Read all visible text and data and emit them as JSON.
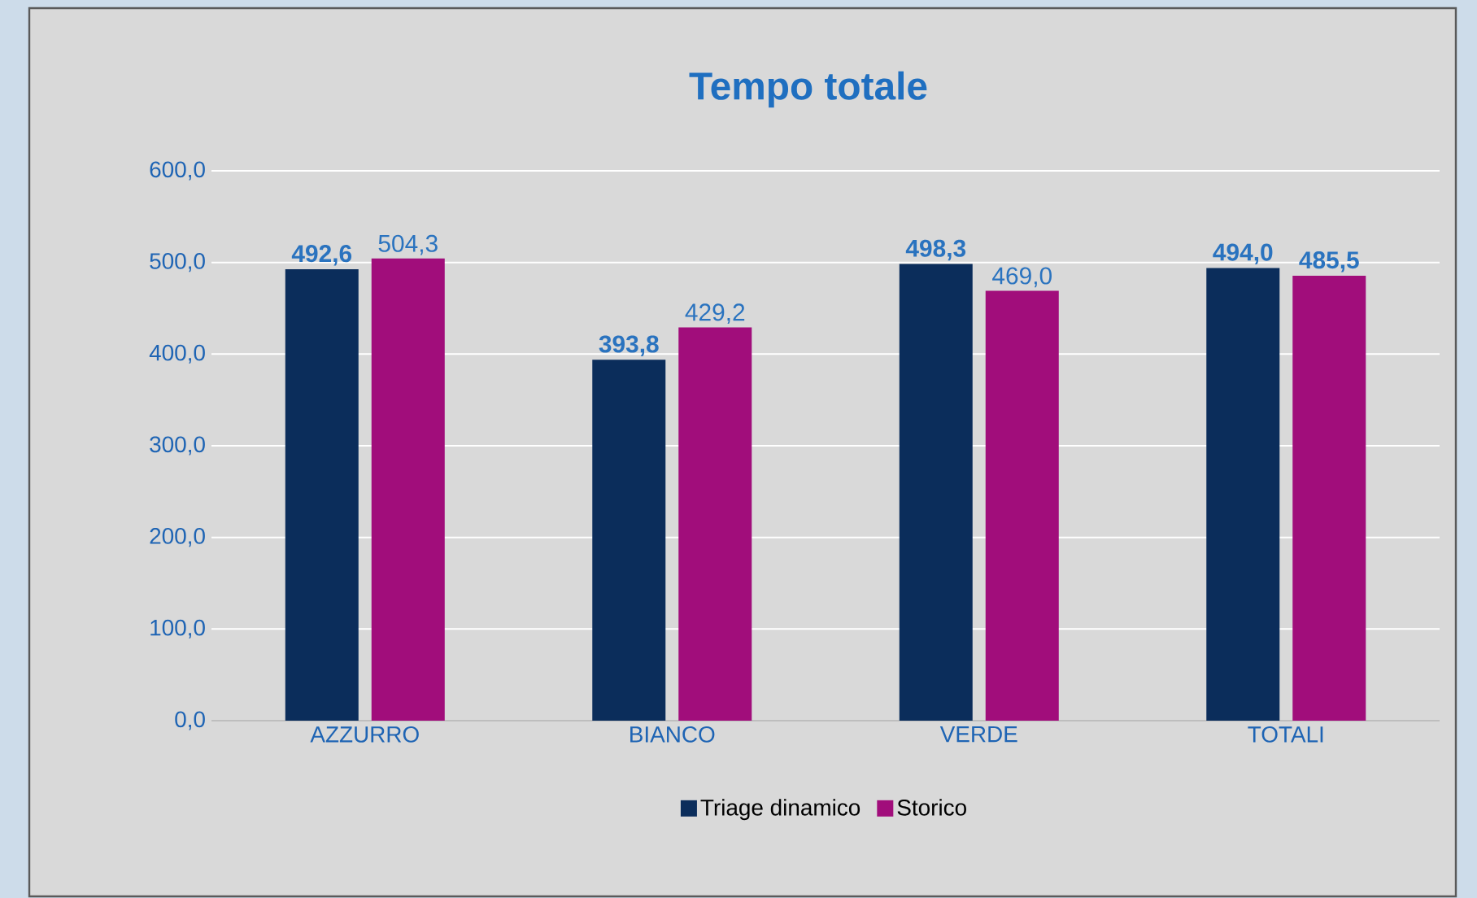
{
  "chart_data": {
    "type": "bar",
    "title": "Tempo totale",
    "categories": [
      "AZZURRO",
      "BIANCO",
      "VERDE",
      "TOTALI"
    ],
    "series": [
      {
        "name": "Triage dinamico",
        "color": "#0b2d5b",
        "values": [
          492.6,
          393.8,
          498.3,
          494.0
        ],
        "value_labels": [
          "**492,6**",
          "**393,8**",
          "**498,3**",
          "**494,0**"
        ]
      },
      {
        "name": "Storico",
        "color": "#a10d7b",
        "values": [
          504.3,
          429.2,
          469.0,
          485.5
        ],
        "value_labels": [
          "504,3",
          "429,2",
          "469,0",
          "**485,5**"
        ]
      }
    ],
    "ylim": [
      0,
      600
    ],
    "yticks": [
      {
        "value": 0,
        "label": "0,0"
      },
      {
        "value": 100,
        "label": "100,0"
      },
      {
        "value": 200,
        "label": "200,0"
      },
      {
        "value": 300,
        "label": "300,0"
      },
      {
        "value": 400,
        "label": "400,0"
      },
      {
        "value": 500,
        "label": "500,0"
      },
      {
        "value": 600,
        "label": "600,0"
      }
    ],
    "grid": "y",
    "legend": "bottom"
  }
}
